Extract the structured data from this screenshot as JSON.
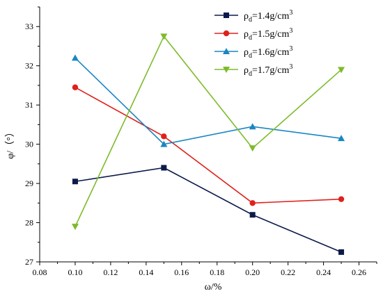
{
  "chart_data": {
    "type": "line",
    "xlabel": "ω/%",
    "ylabel": "φ/（°）",
    "xlim": [
      0.08,
      0.27
    ],
    "ylim": [
      27,
      33.5
    ],
    "xticks": [
      "0.08",
      "0.10",
      "0.12",
      "0.14",
      "0.16",
      "0.18",
      "0.20",
      "0.22",
      "0.24",
      "0.26"
    ],
    "yticks": [
      "27",
      "28",
      "29",
      "30",
      "31",
      "32",
      "33"
    ],
    "legend_position": "top-right",
    "x": [
      0.1,
      0.15,
      0.2,
      0.25
    ],
    "series": [
      {
        "name_main": "ρ",
        "name_sub": "d",
        "name_rest": "=1.4g/cm",
        "name_sup": "3",
        "color": "#0b1a4a",
        "marker": "square",
        "values": [
          29.05,
          29.4,
          28.2,
          27.25
        ]
      },
      {
        "name_main": "ρ",
        "name_sub": "d",
        "name_rest": "=1.5g/cm",
        "name_sup": "3",
        "color": "#e0201b",
        "marker": "circle",
        "values": [
          31.45,
          30.2,
          28.5,
          28.6
        ]
      },
      {
        "name_main": "ρ",
        "name_sub": "d",
        "name_rest": "=1.6g/cm",
        "name_sup": "3",
        "color": "#1a86c2",
        "marker": "triangle-up",
        "values": [
          32.2,
          30.0,
          30.45,
          30.15
        ]
      },
      {
        "name_main": "ρ",
        "name_sub": "d",
        "name_rest": "=1.7g/cm",
        "name_sup": "3",
        "color": "#7dbb2a",
        "marker": "triangle-down",
        "values": [
          27.9,
          32.75,
          29.9,
          31.9
        ]
      }
    ]
  }
}
